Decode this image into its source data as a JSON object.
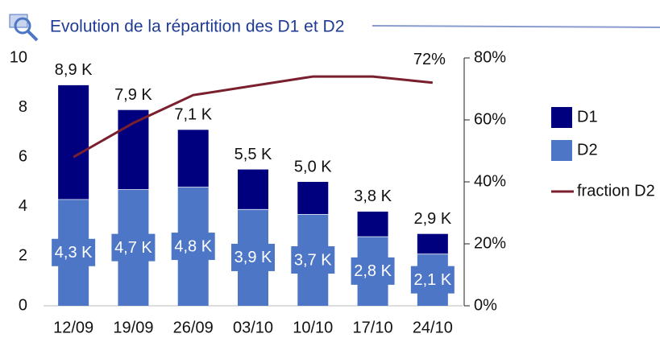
{
  "chart_data": {
    "type": "stacked-bar-line",
    "title": "Evolution de la répartition des D1 et D2",
    "categories": [
      "12/09",
      "19/09",
      "26/09",
      "03/10",
      "10/10",
      "17/10",
      "24/10"
    ],
    "series": [
      {
        "name": "D1",
        "color": "#00007f",
        "values": [
          4.6,
          3.2,
          2.3,
          1.6,
          1.3,
          1.0,
          0.8
        ]
      },
      {
        "name": "D2",
        "color": "#4e76c6",
        "values": [
          4.3,
          4.7,
          4.8,
          3.9,
          3.7,
          2.8,
          2.1
        ],
        "value_labels": [
          "4,3 K",
          "4,7 K",
          "4,8 K",
          "3,9 K",
          "3,7 K",
          "2,8 K",
          "2,1 K"
        ]
      },
      {
        "name": "fraction D2",
        "color": "#7a1f2e",
        "axis": "y2",
        "values": [
          48,
          59,
          68,
          71,
          74,
          74,
          72
        ],
        "value_labels": [
          null,
          null,
          null,
          null,
          null,
          null,
          "72%"
        ]
      }
    ],
    "totals": {
      "values": [
        8.9,
        7.9,
        7.1,
        5.5,
        5.0,
        3.8,
        2.9
      ],
      "value_labels": [
        "8,9 K",
        "7,9 K",
        "7,1 K",
        "5,5 K",
        "5,0 K",
        "3,8 K",
        "2,9 K"
      ]
    },
    "ylim": [
      0,
      10
    ],
    "yticks": [
      0,
      2,
      4,
      6,
      8,
      10
    ],
    "y2lim": [
      0,
      80
    ],
    "y2ticks": [
      {
        "value": 0,
        "label": "0%"
      },
      {
        "value": 20,
        "label": "20%"
      },
      {
        "value": 40,
        "label": "40%"
      },
      {
        "value": 60,
        "label": "60%"
      },
      {
        "value": 80,
        "label": "80%"
      }
    ],
    "legend": "right"
  }
}
